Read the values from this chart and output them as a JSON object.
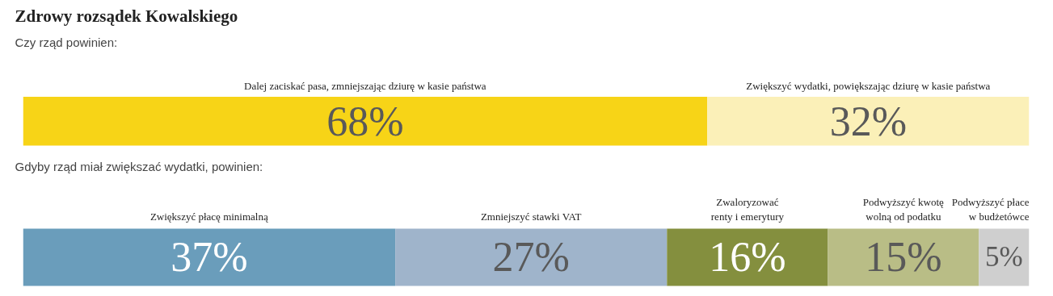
{
  "chart_data": [
    {
      "type": "bar",
      "orientation": "horizontal",
      "stacked": true,
      "title": "Zdrowy rozsądek Kowalskiego",
      "subtitle": "Czy rząd powinien:",
      "categories": [
        null
      ],
      "xlim": [
        0,
        100
      ],
      "tick_labels": false,
      "grid": false,
      "series": [
        {
          "name": "Dalej zaciskać pasa, zmniejszając dziurę w kasie państwa",
          "color": "#f7d417",
          "values": [
            68
          ],
          "value_labels": [
            "68%"
          ]
        },
        {
          "name": "Zwiększyć wydatki, powiększając dziurę w kasie państwa",
          "color": "#fbf0b8",
          "values": [
            32
          ],
          "value_labels": [
            "32%"
          ]
        }
      ]
    },
    {
      "type": "bar",
      "orientation": "horizontal",
      "stacked": true,
      "subtitle": "Gdyby rząd miał zwiększać wydatki, powinien:",
      "categories": [
        null
      ],
      "xlim": [
        0,
        100
      ],
      "tick_labels": false,
      "grid": false,
      "series": [
        {
          "name": "Zwiększyć płacę minimalną",
          "color": "#6a9dbb",
          "values": [
            37
          ],
          "value_labels": [
            "37%"
          ]
        },
        {
          "name": "Zmniejszyć stawki VAT",
          "color": "#9fb4cb",
          "values": [
            27
          ],
          "value_labels": [
            "27%"
          ]
        },
        {
          "name": "Zwaloryzować renty i emerytury",
          "color": "#848f3e",
          "values": [
            16
          ],
          "value_labels": [
            "16%"
          ]
        },
        {
          "name": "Podwyższyć kwotę wolną od podatku",
          "color": "#b9bd86",
          "values": [
            15
          ],
          "value_labels": [
            "15%"
          ]
        },
        {
          "name": "Podwyższyć płace w budżetówce",
          "color": "#cfcfcf",
          "values": [
            5
          ],
          "value_labels": [
            "5%"
          ]
        }
      ]
    }
  ]
}
